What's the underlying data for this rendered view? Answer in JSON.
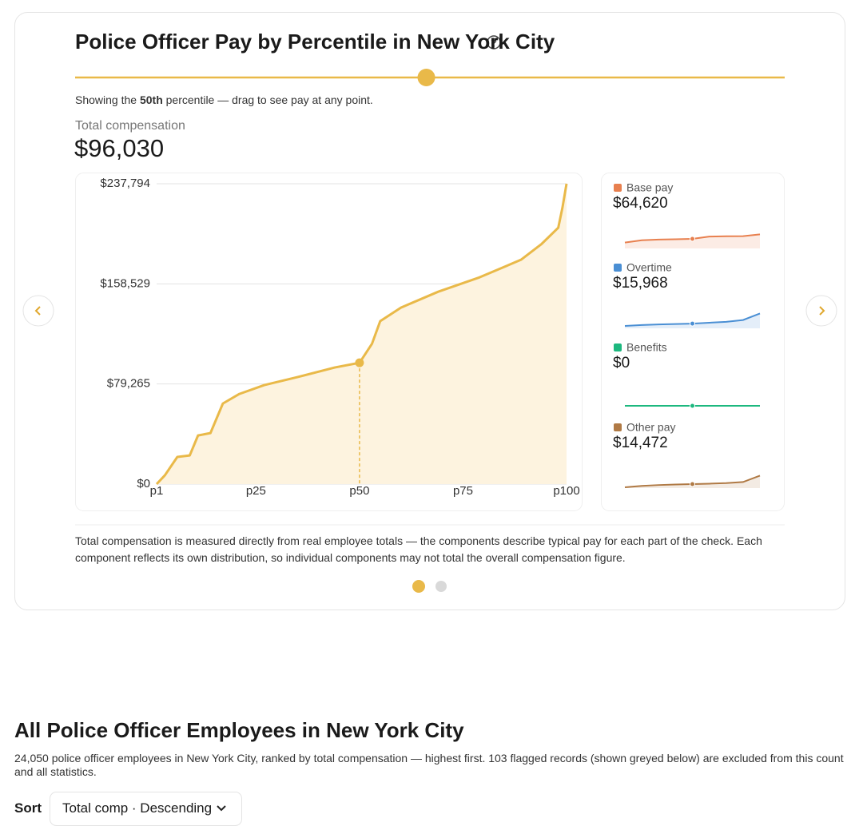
{
  "card": {
    "title": "Police Officer Pay by Percentile in New York City",
    "showing_prefix": "Showing the",
    "showing_percentile": "50th",
    "showing_suffix": "percentile — drag to see pay at any point.",
    "note": "Total compensation is measured directly from real employee totals — the components describe typical pay for each part of the check. Each component reflects its own distribution, so individual components may not total the overall compensation figure."
  },
  "section": {
    "title": "All Police Officer Employees in New York City",
    "description": "24,050 police officer employees in New York City, ranked by total compensation — highest first. 103 flagged records (shown greyed below) are excluded from this count and all statistics.",
    "sort_label": "Sort",
    "sort_value": "Total comp · Descending"
  },
  "chart_data": [
    {
      "type": "area",
      "subtitle": "Total compensation",
      "color": "#e9b949",
      "x": [
        1,
        3,
        6,
        9,
        11,
        14,
        17,
        21,
        27,
        35,
        44,
        50,
        53,
        55,
        60,
        69,
        79,
        89,
        94,
        98,
        99,
        100
      ],
      "values": [
        0,
        7000,
        21500,
        22700,
        38500,
        40400,
        63800,
        71400,
        78400,
        84700,
        92300,
        96030,
        111000,
        129000,
        139700,
        152300,
        163700,
        177600,
        190200,
        203000,
        218700,
        237794
      ],
      "value_labels": [
        null,
        null,
        null,
        null,
        null,
        null,
        null,
        null,
        null,
        null,
        null,
        "$96,030",
        null,
        null,
        null,
        null,
        null,
        null,
        null,
        null,
        null,
        null
      ],
      "highlight_x": 50,
      "xlim": [
        1,
        100
      ],
      "xticks": [
        {
          "value": 1,
          "label": "p1"
        },
        {
          "value": 25,
          "label": "p25"
        },
        {
          "value": 50,
          "label": "p50"
        },
        {
          "value": 75,
          "label": "p75"
        },
        {
          "value": 100,
          "label": "p100"
        }
      ],
      "ylim": [
        0,
        237794
      ],
      "yticks": [
        {
          "value": 0,
          "label": "$0"
        },
        {
          "value": 79265,
          "label": "$79,265"
        },
        {
          "value": 158529,
          "label": "$158,529"
        },
        {
          "value": 237794,
          "label": "$237,794"
        }
      ],
      "grid": true
    },
    {
      "type": "sparkline",
      "name": "Base pay",
      "color": "#e8804f",
      "values": [
        40000,
        55000,
        60000,
        62000,
        64620,
        80000,
        82000,
        83000,
        95000
      ],
      "value_labels": [
        null,
        null,
        null,
        null,
        "$64,620",
        null,
        null,
        null,
        null
      ],
      "ylim": [
        0,
        140000
      ]
    },
    {
      "type": "sparkline",
      "name": "Overtime",
      "color": "#4a8fd4",
      "values": [
        8000,
        11000,
        13000,
        14500,
        15968,
        19000,
        22000,
        28000,
        50000
      ],
      "value_labels": [
        null,
        null,
        null,
        null,
        "$15,968",
        null,
        null,
        null,
        null
      ],
      "ylim": [
        0,
        70000
      ]
    },
    {
      "type": "sparkline",
      "name": "Benefits",
      "color": "#1db87f",
      "values": [
        0,
        0,
        0,
        0,
        0,
        0,
        0,
        0,
        0
      ],
      "value_labels": [
        null,
        null,
        null,
        null,
        "$0",
        null,
        null,
        null,
        null
      ],
      "ylim": [
        0,
        70000
      ]
    },
    {
      "type": "sparkline",
      "name": "Other pay",
      "color": "#b07a45",
      "values": [
        3000,
        8000,
        11000,
        13000,
        14472,
        16000,
        18000,
        22000,
        45000
      ],
      "value_labels": [
        null,
        null,
        null,
        null,
        "$14,472",
        null,
        null,
        null,
        null
      ],
      "ylim": [
        0,
        75000
      ]
    }
  ]
}
